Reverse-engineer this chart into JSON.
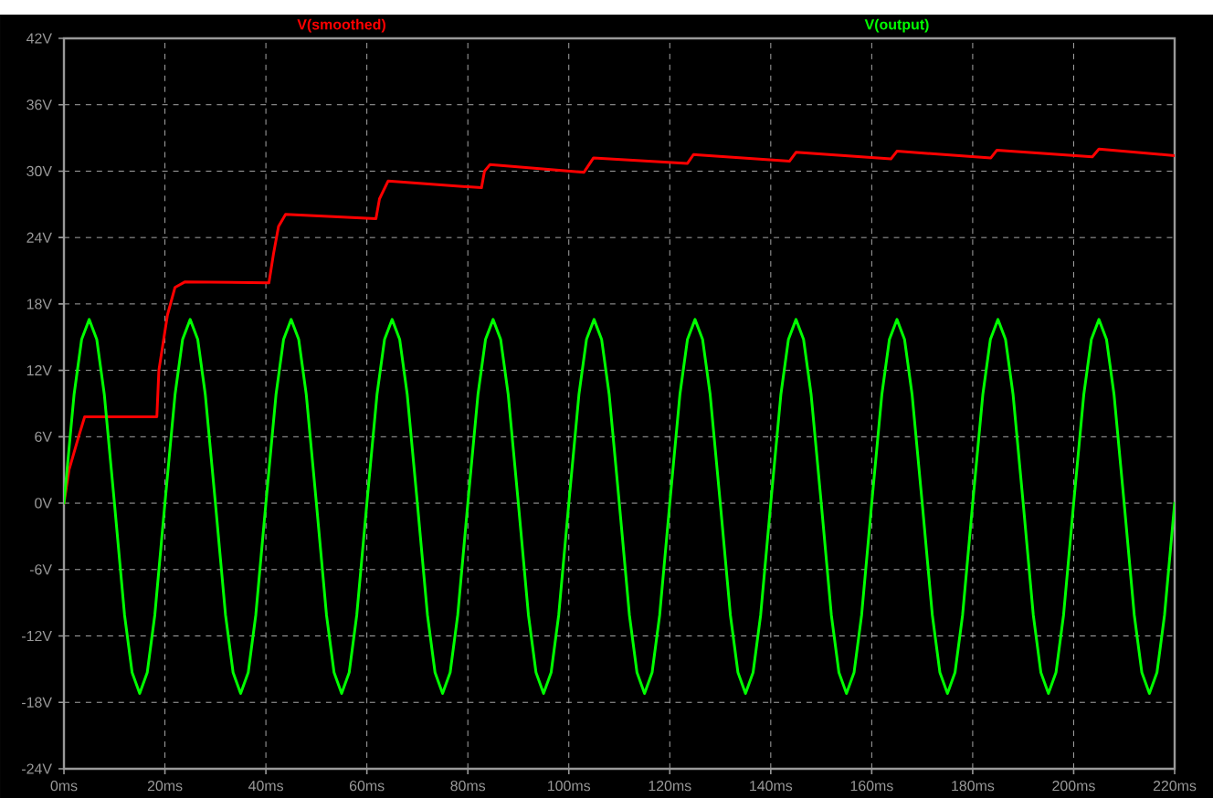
{
  "chart_data": {
    "type": "line",
    "xlim": [
      0,
      220
    ],
    "ylim": [
      -24,
      42
    ],
    "xticks": [
      {
        "value": 0,
        "label": "0ms"
      },
      {
        "value": 20,
        "label": "20ms"
      },
      {
        "value": 40,
        "label": "40ms"
      },
      {
        "value": 60,
        "label": "60ms"
      },
      {
        "value": 80,
        "label": "80ms"
      },
      {
        "value": 100,
        "label": "100ms"
      },
      {
        "value": 120,
        "label": "120ms"
      },
      {
        "value": 140,
        "label": "140ms"
      },
      {
        "value": 160,
        "label": "160ms"
      },
      {
        "value": 180,
        "label": "180ms"
      },
      {
        "value": 200,
        "label": "200ms"
      },
      {
        "value": 220,
        "label": "220ms"
      }
    ],
    "yticks": [
      {
        "value": -24,
        "label": "-24V"
      },
      {
        "value": -18,
        "label": "-18V"
      },
      {
        "value": -12,
        "label": "-12V"
      },
      {
        "value": -6,
        "label": "-6V"
      },
      {
        "value": 0,
        "label": "0V"
      },
      {
        "value": 6,
        "label": "6V"
      },
      {
        "value": 12,
        "label": "12V"
      },
      {
        "value": 18,
        "label": "18V"
      },
      {
        "value": 24,
        "label": "24V"
      },
      {
        "value": 30,
        "label": "30V"
      },
      {
        "value": 36,
        "label": "36V"
      },
      {
        "value": 42,
        "label": "42V"
      }
    ],
    "grid": true,
    "legend": "top",
    "series": [
      {
        "name": "V(smoothed)",
        "color": "#ff0000",
        "x": [
          0,
          1,
          2.9,
          4.1,
          18.4,
          18.8,
          20.5,
          22,
          24,
          40.6,
          41.5,
          42.5,
          43.9,
          61.8,
          62.5,
          64.2,
          82.7,
          83.3,
          84.4,
          103,
          104.9,
          123.5,
          124.7,
          143.7,
          145,
          163.8,
          165,
          183.6,
          184.8,
          203.7,
          205,
          220
        ],
        "values": [
          0,
          3,
          6,
          7.8,
          7.8,
          12,
          17,
          19.5,
          20,
          19.9,
          22.5,
          25,
          26.1,
          25.7,
          27.5,
          29.1,
          28.5,
          30,
          30.6,
          29.9,
          31.2,
          30.7,
          31.5,
          30.9,
          31.7,
          31.1,
          31.8,
          31.2,
          31.9,
          31.3,
          32,
          31.4
        ]
      },
      {
        "name": "V(output)",
        "color": "#00ff00",
        "x": [
          0,
          2,
          3.5,
          5,
          6.5,
          8,
          10,
          12,
          13.5,
          15,
          16.5,
          18,
          20,
          22,
          23.5,
          25,
          26.5,
          28,
          30,
          32,
          33.5,
          35,
          36.5,
          38,
          40,
          42,
          43.5,
          45,
          46.5,
          48,
          50,
          52,
          53.5,
          55,
          56.5,
          58,
          60,
          62,
          63.5,
          65,
          66.5,
          68,
          70,
          72,
          73.5,
          75,
          76.5,
          78,
          80,
          82,
          83.5,
          85,
          86.5,
          88,
          90,
          92,
          93.5,
          95,
          96.5,
          98,
          100,
          102,
          103.5,
          105,
          106.5,
          108,
          110,
          112,
          113.5,
          115,
          116.5,
          118,
          120,
          122,
          123.5,
          125,
          126.5,
          128,
          130,
          132,
          133.5,
          135,
          136.5,
          138,
          140,
          142,
          143.5,
          145,
          146.5,
          148,
          150,
          152,
          153.5,
          155,
          156.5,
          158,
          160,
          162,
          163.5,
          165,
          166.5,
          168,
          170,
          172,
          173.5,
          175,
          176.5,
          178,
          180,
          182,
          183.5,
          185,
          186.5,
          188,
          190,
          192,
          193.5,
          195,
          196.5,
          198,
          200,
          202,
          203.5,
          205,
          206.5,
          208,
          210,
          212,
          213.5,
          215,
          216.5,
          218,
          220
        ],
        "values": [
          0,
          9.8,
          14.8,
          16.6,
          14.8,
          9.8,
          0,
          -10.1,
          -15.3,
          -17.2,
          -15.3,
          -10.1,
          0,
          9.8,
          14.8,
          16.6,
          14.8,
          9.8,
          0,
          -10.1,
          -15.3,
          -17.2,
          -15.3,
          -10.1,
          0,
          9.8,
          14.8,
          16.6,
          14.8,
          9.8,
          0,
          -10.1,
          -15.3,
          -17.2,
          -15.3,
          -10.1,
          0,
          9.8,
          14.8,
          16.6,
          14.8,
          9.8,
          0,
          -10.1,
          -15.3,
          -17.2,
          -15.3,
          -10.1,
          0,
          9.8,
          14.8,
          16.6,
          14.8,
          9.8,
          0,
          -10.1,
          -15.3,
          -17.2,
          -15.3,
          -10.1,
          0,
          9.8,
          14.8,
          16.6,
          14.8,
          9.8,
          0,
          -10.1,
          -15.3,
          -17.2,
          -15.3,
          -10.1,
          0,
          9.8,
          14.8,
          16.6,
          14.8,
          9.8,
          0,
          -10.1,
          -15.3,
          -17.2,
          -15.3,
          -10.1,
          0,
          9.8,
          14.8,
          16.6,
          14.8,
          9.8,
          0,
          -10.1,
          -15.3,
          -17.2,
          -15.3,
          -10.1,
          0,
          9.8,
          14.8,
          16.6,
          14.8,
          9.8,
          0,
          -10.1,
          -15.3,
          -17.2,
          -15.3,
          -10.1,
          0,
          9.8,
          14.8,
          16.6,
          14.8,
          9.8,
          0,
          -10.1,
          -15.3,
          -17.2,
          -15.3,
          -10.1,
          0,
          9.8,
          14.8,
          16.6,
          14.8,
          9.8,
          0,
          -10.1,
          -15.3,
          -17.2,
          -15.3,
          -10.1,
          0
        ]
      }
    ]
  }
}
